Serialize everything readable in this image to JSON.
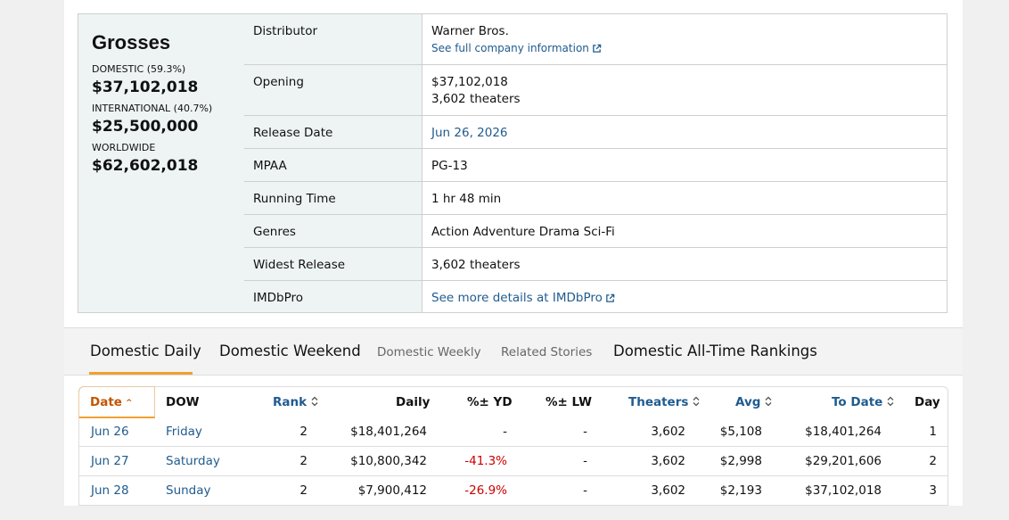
{
  "grosses": {
    "title": "Grosses",
    "domestic_label": "DOMESTIC (59.3%)",
    "domestic_value": "$37,102,018",
    "international_label": "INTERNATIONAL (40.7%)",
    "international_value": "$25,500,000",
    "worldwide_label": "WORLDWIDE",
    "worldwide_value": "$62,602,018"
  },
  "info": {
    "distributor_label": "Distributor",
    "distributor_value": "Warner Bros.",
    "distributor_link": "See full company information",
    "opening_label": "Opening",
    "opening_value": "$37,102,018",
    "opening_theaters": "3,602 theaters",
    "release_label": "Release Date",
    "release_value": "Jun 26, 2026",
    "mpaa_label": "MPAA",
    "mpaa_value": "PG-13",
    "runtime_label": "Running Time",
    "runtime_value": "1 hr 48 min",
    "genres_label": "Genres",
    "genres_value": "Action Adventure Drama Sci-Fi",
    "widest_label": "Widest Release",
    "widest_value": "3,602 theaters",
    "imdb_label": "IMDbPro",
    "imdb_link": "See more details at IMDbPro"
  },
  "tabs": [
    "Domestic Daily",
    "Domestic Weekend",
    "Domestic Weekly",
    "Related Stories",
    "Domestic All-Time Rankings"
  ],
  "table": {
    "headers": [
      "Date",
      "DOW",
      "Rank",
      "Daily",
      "%± YD",
      "%± LW",
      "Theaters",
      "Avg",
      "To Date",
      "Day"
    ],
    "rows": [
      [
        "Jun 26",
        "Friday",
        "2",
        "$18,401,264",
        "-",
        "-",
        "3,602",
        "$5,108",
        "$18,401,264",
        "1"
      ],
      [
        "Jun 27",
        "Saturday",
        "2",
        "$10,800,342",
        "-41.3%",
        "-",
        "3,602",
        "$2,998",
        "$29,201,606",
        "2"
      ],
      [
        "Jun 28",
        "Sunday",
        "2",
        "$7,900,412",
        "-26.9%",
        "-",
        "3,602",
        "$2,193",
        "$37,102,018",
        "3"
      ]
    ]
  },
  "colors": {
    "accent": "#f0a030",
    "link": "#1f5b8f",
    "negative": "#cc0000",
    "panel": "#eef4f4"
  }
}
